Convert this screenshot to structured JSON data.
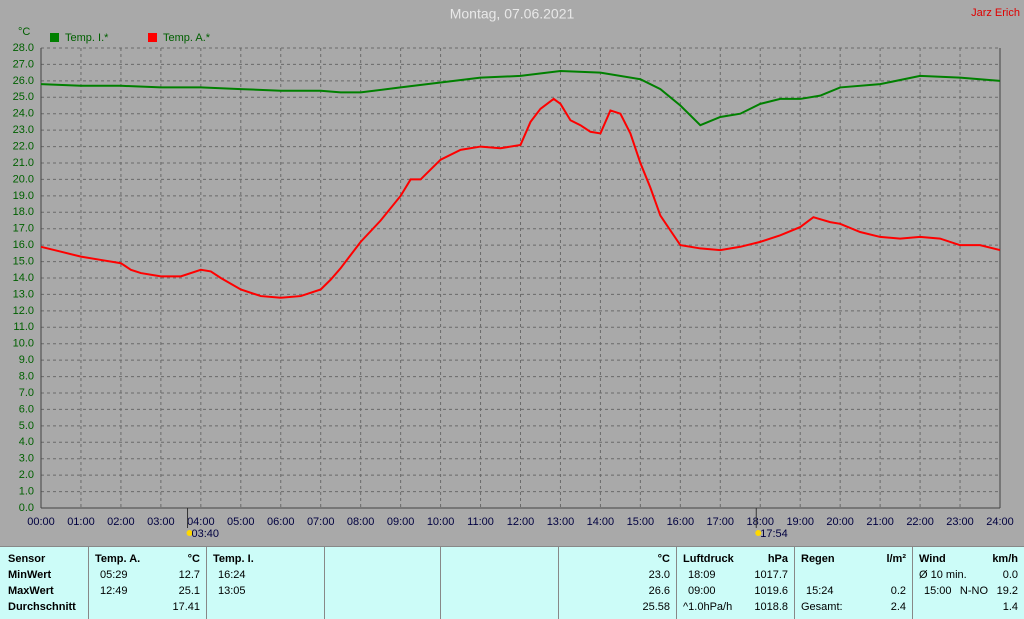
{
  "chart_data": {
    "type": "line",
    "title": "Montag, 07.06.2021",
    "owner": "Jarz Erich",
    "y_unit": "°C",
    "xlim": [
      0,
      24
    ],
    "ylim": [
      0,
      28
    ],
    "grid": true,
    "xticks": [
      {
        "value": 0,
        "label": "00:00"
      },
      {
        "value": 1,
        "label": "01:00"
      },
      {
        "value": 2,
        "label": "02:00"
      },
      {
        "value": 3,
        "label": "03:00"
      },
      {
        "value": 4,
        "label": "04:00"
      },
      {
        "value": 5,
        "label": "05:00"
      },
      {
        "value": 6,
        "label": "06:00"
      },
      {
        "value": 7,
        "label": "07:00"
      },
      {
        "value": 8,
        "label": "08:00"
      },
      {
        "value": 9,
        "label": "09:00"
      },
      {
        "value": 10,
        "label": "10:00"
      },
      {
        "value": 11,
        "label": "11:00"
      },
      {
        "value": 12,
        "label": "12:00"
      },
      {
        "value": 13,
        "label": "13:00"
      },
      {
        "value": 14,
        "label": "14:00"
      },
      {
        "value": 15,
        "label": "15:00"
      },
      {
        "value": 16,
        "label": "16:00"
      },
      {
        "value": 17,
        "label": "17:00"
      },
      {
        "value": 18,
        "label": "18:00"
      },
      {
        "value": 19,
        "label": "19:00"
      },
      {
        "value": 20,
        "label": "20:00"
      },
      {
        "value": 21,
        "label": "21:00"
      },
      {
        "value": 22,
        "label": "22:00"
      },
      {
        "value": 23,
        "label": "23:00"
      },
      {
        "value": 24,
        "label": "24:00"
      }
    ],
    "yticks": [
      {
        "value": 0,
        "label": "0.0"
      },
      {
        "value": 1,
        "label": "1.0"
      },
      {
        "value": 2,
        "label": "2.0"
      },
      {
        "value": 3,
        "label": "3.0"
      },
      {
        "value": 4,
        "label": "4.0"
      },
      {
        "value": 5,
        "label": "5.0"
      },
      {
        "value": 6,
        "label": "6.0"
      },
      {
        "value": 7,
        "label": "7.0"
      },
      {
        "value": 8,
        "label": "8.0"
      },
      {
        "value": 9,
        "label": "9.0"
      },
      {
        "value": 10,
        "label": "10.0"
      },
      {
        "value": 11,
        "label": "11.0"
      },
      {
        "value": 12,
        "label": "12.0"
      },
      {
        "value": 13,
        "label": "13.0"
      },
      {
        "value": 14,
        "label": "14.0"
      },
      {
        "value": 15,
        "label": "15.0"
      },
      {
        "value": 16,
        "label": "16.0"
      },
      {
        "value": 17,
        "label": "17.0"
      },
      {
        "value": 18,
        "label": "18.0"
      },
      {
        "value": 19,
        "label": "19.0"
      },
      {
        "value": 20,
        "label": "20.0"
      },
      {
        "value": 21,
        "label": "21.0"
      },
      {
        "value": 22,
        "label": "22.0"
      },
      {
        "value": 23,
        "label": "23.0"
      },
      {
        "value": 24,
        "label": "24.0"
      },
      {
        "value": 25,
        "label": "25.0"
      },
      {
        "value": 26,
        "label": "26.0"
      },
      {
        "value": 27,
        "label": "27.0"
      },
      {
        "value": 28,
        "label": "28.0"
      }
    ],
    "series": [
      {
        "name": "Temp. I.*",
        "color": "#008000",
        "x": [
          0,
          1,
          2,
          3,
          4,
          5,
          6,
          7,
          7.5,
          8,
          9,
          10,
          11,
          12,
          13,
          14,
          15,
          15.5,
          16,
          16.5,
          17,
          17.5,
          18,
          18.5,
          19,
          19.5,
          20,
          21,
          22,
          23,
          24
        ],
        "values": [
          25.8,
          25.7,
          25.7,
          25.6,
          25.6,
          25.5,
          25.4,
          25.4,
          25.3,
          25.3,
          25.6,
          25.9,
          26.2,
          26.3,
          26.6,
          26.5,
          26.1,
          25.5,
          24.5,
          23.3,
          23.8,
          24.0,
          24.6,
          24.9,
          24.9,
          25.1,
          25.6,
          25.8,
          26.3,
          26.2,
          26.0
        ]
      },
      {
        "name": "Temp. A.*",
        "color": "#ff0000",
        "x": [
          0,
          0.5,
          1,
          1.5,
          2,
          2.25,
          2.5,
          3,
          3.5,
          4,
          4.25,
          4.5,
          5,
          5.5,
          6,
          6.5,
          7,
          7.25,
          7.5,
          8,
          8.5,
          9,
          9.25,
          9.5,
          10,
          10.5,
          11,
          11.5,
          12,
          12.25,
          12.5,
          12.83,
          13,
          13.25,
          13.5,
          13.75,
          14,
          14.25,
          14.5,
          14.75,
          15,
          15.25,
          15.5,
          16,
          16.5,
          17,
          17.5,
          18,
          18.5,
          19,
          19.33,
          19.75,
          20,
          20.5,
          21,
          21.5,
          22,
          22.5,
          23,
          23.5,
          24
        ],
        "values": [
          15.9,
          15.6,
          15.3,
          15.1,
          14.9,
          14.5,
          14.3,
          14.1,
          14.1,
          14.5,
          14.4,
          14.0,
          13.3,
          12.9,
          12.8,
          12.9,
          13.3,
          13.9,
          14.6,
          16.2,
          17.5,
          19.0,
          20.0,
          20.0,
          21.2,
          21.8,
          22.0,
          21.9,
          22.1,
          23.5,
          24.3,
          24.9,
          24.6,
          23.6,
          23.3,
          22.9,
          22.8,
          24.2,
          24.0,
          22.8,
          21.0,
          19.5,
          17.8,
          16.0,
          15.8,
          15.7,
          15.9,
          16.2,
          16.6,
          17.1,
          17.7,
          17.4,
          17.3,
          16.8,
          16.5,
          16.4,
          16.5,
          16.4,
          16.0,
          16.0,
          15.7
        ]
      }
    ],
    "annotations": [
      {
        "x": 3.667,
        "label": "03:40"
      },
      {
        "x": 17.9,
        "label": "17:54"
      }
    ]
  },
  "stats_table": {
    "labels": {
      "header": "Sensor",
      "min": "MinWert",
      "max": "MaxWert",
      "avg": "Durchschnitt"
    },
    "groups": [
      {
        "name": "Temp. A.",
        "unit": "°C",
        "min": {
          "time": "05:29",
          "value": "12.7"
        },
        "max": {
          "time": "12:49",
          "value": "25.1"
        },
        "avg": {
          "value": "17.41"
        }
      },
      {
        "name": "Temp. I.",
        "unit": "°C",
        "min": {
          "time": "16:24",
          "value": "23.0"
        },
        "max": {
          "time": "13:05",
          "value": "26.6"
        },
        "avg": {
          "value": "25.58"
        }
      },
      {
        "name": "Luftdruck",
        "unit": "hPa",
        "min": {
          "time": "18:09",
          "value": "1017.7"
        },
        "max": {
          "time": "09:00",
          "value": "1019.6"
        },
        "avg": {
          "time": "^1.0hPa/h",
          "value": "1018.8"
        }
      },
      {
        "name": "Regen",
        "unit": "l/m²",
        "max": {
          "time": "15:24",
          "value": "0.2"
        },
        "avg": {
          "time": "Gesamt:",
          "value": "2.4"
        }
      },
      {
        "name": "Wind",
        "unit": "km/h",
        "min": {
          "time": "Ø 10 min.",
          "value": "0.0"
        },
        "max": {
          "time": "15:00",
          "dir": "N-NO",
          "value": "19.2"
        },
        "avg": {
          "value": "1.4"
        }
      }
    ]
  }
}
